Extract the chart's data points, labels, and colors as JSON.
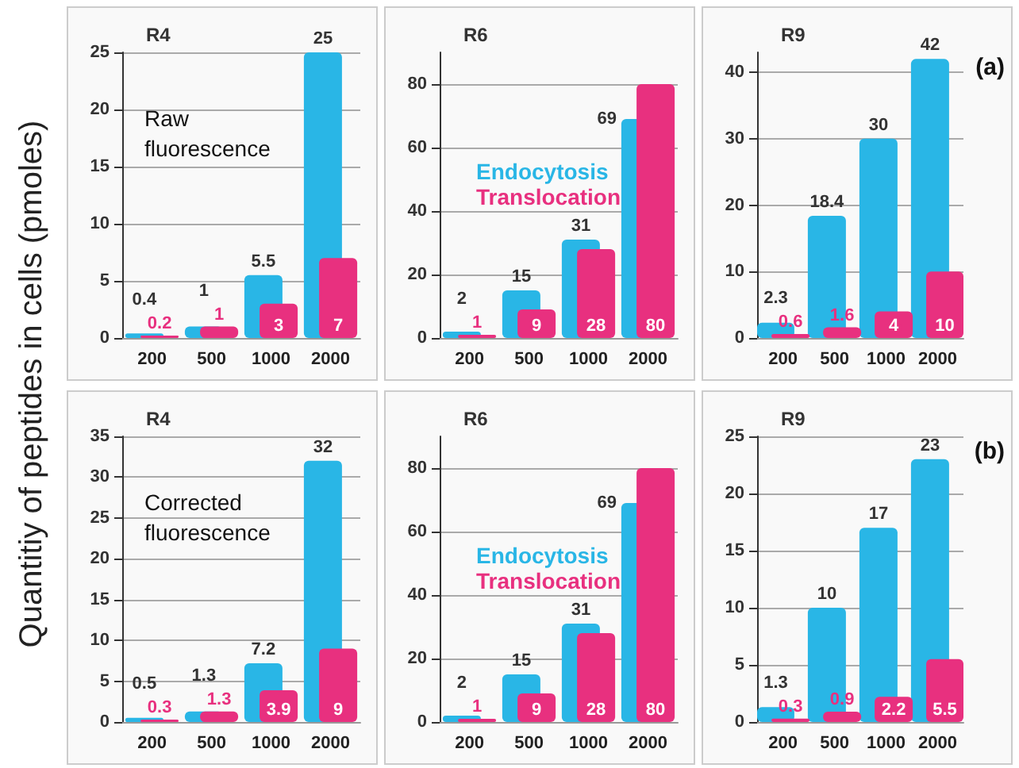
{
  "chart_data": [
    {
      "type": "bar",
      "title": "R4",
      "ylabel": "Quantitiy of peptides in cells (pmoles)",
      "annotations": [
        "Raw fluorescence"
      ],
      "categories": [
        "200",
        "500",
        "1000",
        "2000"
      ],
      "series": [
        {
          "color": "#29b6e6",
          "values": [
            0.4,
            1,
            5.5,
            25
          ]
        },
        {
          "color": "#e8307f",
          "values": [
            0.2,
            1,
            3,
            7
          ]
        }
      ],
      "ylim": [
        0,
        25
      ],
      "yticks": [
        0,
        5,
        10,
        15,
        20,
        25
      ],
      "grid": "y",
      "data_labels": true
    },
    {
      "type": "bar",
      "title": "R6",
      "categories": [
        "200",
        "500",
        "1000",
        "2000"
      ],
      "series": [
        {
          "name": "Endocytosis",
          "color": "#29b6e6",
          "values": [
            2,
            15,
            31,
            69
          ]
        },
        {
          "name": "Translocation",
          "color": "#e8307f",
          "values": [
            1,
            9,
            28,
            80
          ]
        }
      ],
      "ylim": [
        0,
        90
      ],
      "yticks": [
        0,
        20,
        40,
        60,
        80
      ],
      "grid": "y",
      "data_labels": true,
      "legend": "left"
    },
    {
      "type": "bar",
      "title": "R9",
      "annotations": [
        "(a)"
      ],
      "categories": [
        "200",
        "500",
        "1000",
        "2000"
      ],
      "series": [
        {
          "color": "#29b6e6",
          "values": [
            2.3,
            18.4,
            30,
            42
          ]
        },
        {
          "color": "#e8307f",
          "values": [
            0.6,
            1.6,
            4,
            10
          ]
        }
      ],
      "ylim": [
        0,
        43
      ],
      "yticks": [
        0,
        10,
        20,
        30,
        40
      ],
      "grid": "y",
      "data_labels": true
    },
    {
      "type": "bar",
      "title": "R4",
      "annotations": [
        "Corrected fluorescence"
      ],
      "categories": [
        "200",
        "500",
        "1000",
        "2000"
      ],
      "series": [
        {
          "color": "#29b6e6",
          "values": [
            0.5,
            1.3,
            7.2,
            32
          ]
        },
        {
          "color": "#e8307f",
          "values": [
            0.3,
            1.3,
            3.9,
            9
          ]
        }
      ],
      "ylim": [
        0,
        35
      ],
      "yticks": [
        0,
        5,
        10,
        15,
        20,
        25,
        30,
        35
      ],
      "grid": "y",
      "data_labels": true
    },
    {
      "type": "bar",
      "title": "R6",
      "categories": [
        "200",
        "500",
        "1000",
        "2000"
      ],
      "series": [
        {
          "name": "Endocytosis",
          "color": "#29b6e6",
          "values": [
            2,
            15,
            31,
            69
          ]
        },
        {
          "name": "Translocation",
          "color": "#e8307f",
          "values": [
            1,
            9,
            28,
            80
          ]
        }
      ],
      "ylim": [
        0,
        90
      ],
      "yticks": [
        0,
        20,
        40,
        60,
        80
      ],
      "grid": "y",
      "data_labels": true,
      "legend": "left"
    },
    {
      "type": "bar",
      "title": "R9",
      "annotations": [
        "(b)"
      ],
      "categories": [
        "200",
        "500",
        "1000",
        "2000"
      ],
      "series": [
        {
          "color": "#29b6e6",
          "values": [
            1.3,
            10,
            17,
            23
          ]
        },
        {
          "color": "#e8307f",
          "values": [
            0.3,
            0.9,
            2.2,
            5.5
          ]
        }
      ],
      "ylim": [
        0,
        25
      ],
      "yticks": [
        0,
        5,
        10,
        15,
        20,
        25
      ],
      "grid": "y",
      "data_labels": true
    }
  ]
}
